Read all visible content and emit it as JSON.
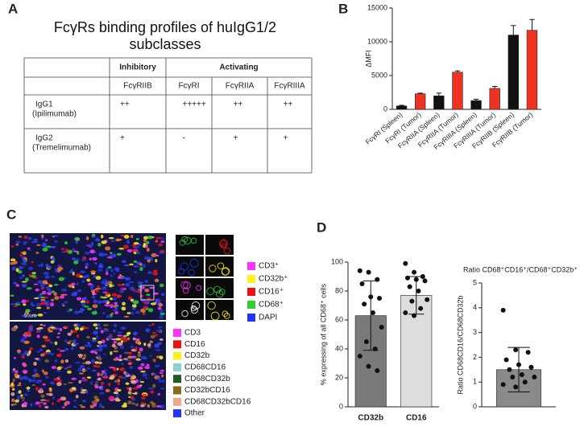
{
  "panel_labels": [
    "A",
    "B",
    "C",
    "D"
  ],
  "table": {
    "title": "FcγRs binding profiles of huIgG1/2 subclasses",
    "groups": [
      "Inhibitory",
      "Activating"
    ],
    "columns": [
      "FcγRIIB",
      "FcγRI",
      "FcγRIIA",
      "FcγRIIIA"
    ],
    "rows": [
      {
        "name": "IgG1",
        "drug": "(Ipilimumab)",
        "cells": [
          "++",
          "+++++",
          "++",
          "++"
        ]
      },
      {
        "name": "IgG2",
        "drug": "(Tremelimumab)",
        "cells": [
          "+",
          "-",
          "+",
          "+"
        ]
      }
    ]
  },
  "chart_data": [
    {
      "type": "bar",
      "ylabel": "ΔMFI",
      "categories": [
        "FcγRI (Spleen)",
        "FcγRI (Tumor)",
        "FcγRIIA (Spleen)",
        "FcγRIIA (Tumor)",
        "FcγRIIIA (Spleen)",
        "FcγRIIIA (Tumor)",
        "FcγRIIB (Spleen)",
        "FcγRIIB (Tumor)"
      ],
      "values": [
        500,
        2300,
        2000,
        5500,
        1300,
        3100,
        11000,
        11700
      ],
      "errors": [
        100,
        100,
        400,
        200,
        200,
        300,
        1400,
        1600
      ],
      "colors": [
        "#111111",
        "#ee3322",
        "#111111",
        "#ee3322",
        "#111111",
        "#ee3322",
        "#111111",
        "#ee3322"
      ],
      "ylim": [
        0,
        15000
      ],
      "yticks": [
        0,
        5000,
        10000,
        15000
      ]
    },
    {
      "type": "bar",
      "ylabel": "% expressing of all CD68⁺ cells",
      "categories": [
        "CD32b",
        "CD16"
      ],
      "values": [
        63,
        77
      ],
      "errors": [
        24,
        13
      ],
      "colors": [
        "#7a7a7a",
        "#dddddd"
      ],
      "points": [
        [
          94,
          93,
          88,
          85,
          76,
          75,
          71,
          65,
          55,
          45,
          40,
          35,
          28,
          25
        ],
        [
          99,
          93,
          90,
          89,
          88,
          87,
          83,
          80,
          74,
          73,
          68,
          65,
          63
        ]
      ],
      "ylim": [
        0,
        100
      ],
      "yticks": [
        0,
        20,
        40,
        60,
        80,
        100
      ]
    },
    {
      "type": "bar",
      "title": "Ratio CD68⁺CD16⁺/CD68⁺CD32b⁺",
      "ylabel": "Ratio CD68CD16/CD68CD32b",
      "values": [
        1.5
      ],
      "errors": [
        0.9
      ],
      "colors": [
        "#8a8a8a"
      ],
      "points": [
        [
          3.9,
          2.3,
          2.2,
          1.9,
          1.7,
          1.6,
          1.5,
          1.3,
          1.2,
          1.2,
          1.0,
          0.9,
          0.8
        ]
      ],
      "ylim": [
        0,
        5
      ],
      "yticks": [
        0,
        1,
        2,
        3,
        4,
        5
      ]
    }
  ],
  "panel_c": {
    "scale_label": "50um",
    "legend_top": [
      {
        "label": "CD3⁺",
        "color": "#ff33ff"
      },
      {
        "label": "CD32b⁺",
        "color": "#ffee22"
      },
      {
        "label": "CD16⁺",
        "color": "#ee1111"
      },
      {
        "label": "CD68⁺",
        "color": "#33cc33"
      },
      {
        "label": "DAPI",
        "color": "#2233ff"
      }
    ],
    "legend_bottom": [
      {
        "label": "CD3",
        "color": "#ff33ff"
      },
      {
        "label": "CD16",
        "color": "#ee1111"
      },
      {
        "label": "CD32b",
        "color": "#ffee22"
      },
      {
        "label": "CD68CD16",
        "color": "#8ccfcf"
      },
      {
        "label": "CD68CD32b",
        "color": "#1f5a1f"
      },
      {
        "label": "CD32bCD16",
        "color": "#8b6a1f"
      },
      {
        "label": "CD68CD32bCD16",
        "color": "#f4a58a"
      },
      {
        "label": "Other",
        "color": "#2233ff"
      }
    ]
  }
}
